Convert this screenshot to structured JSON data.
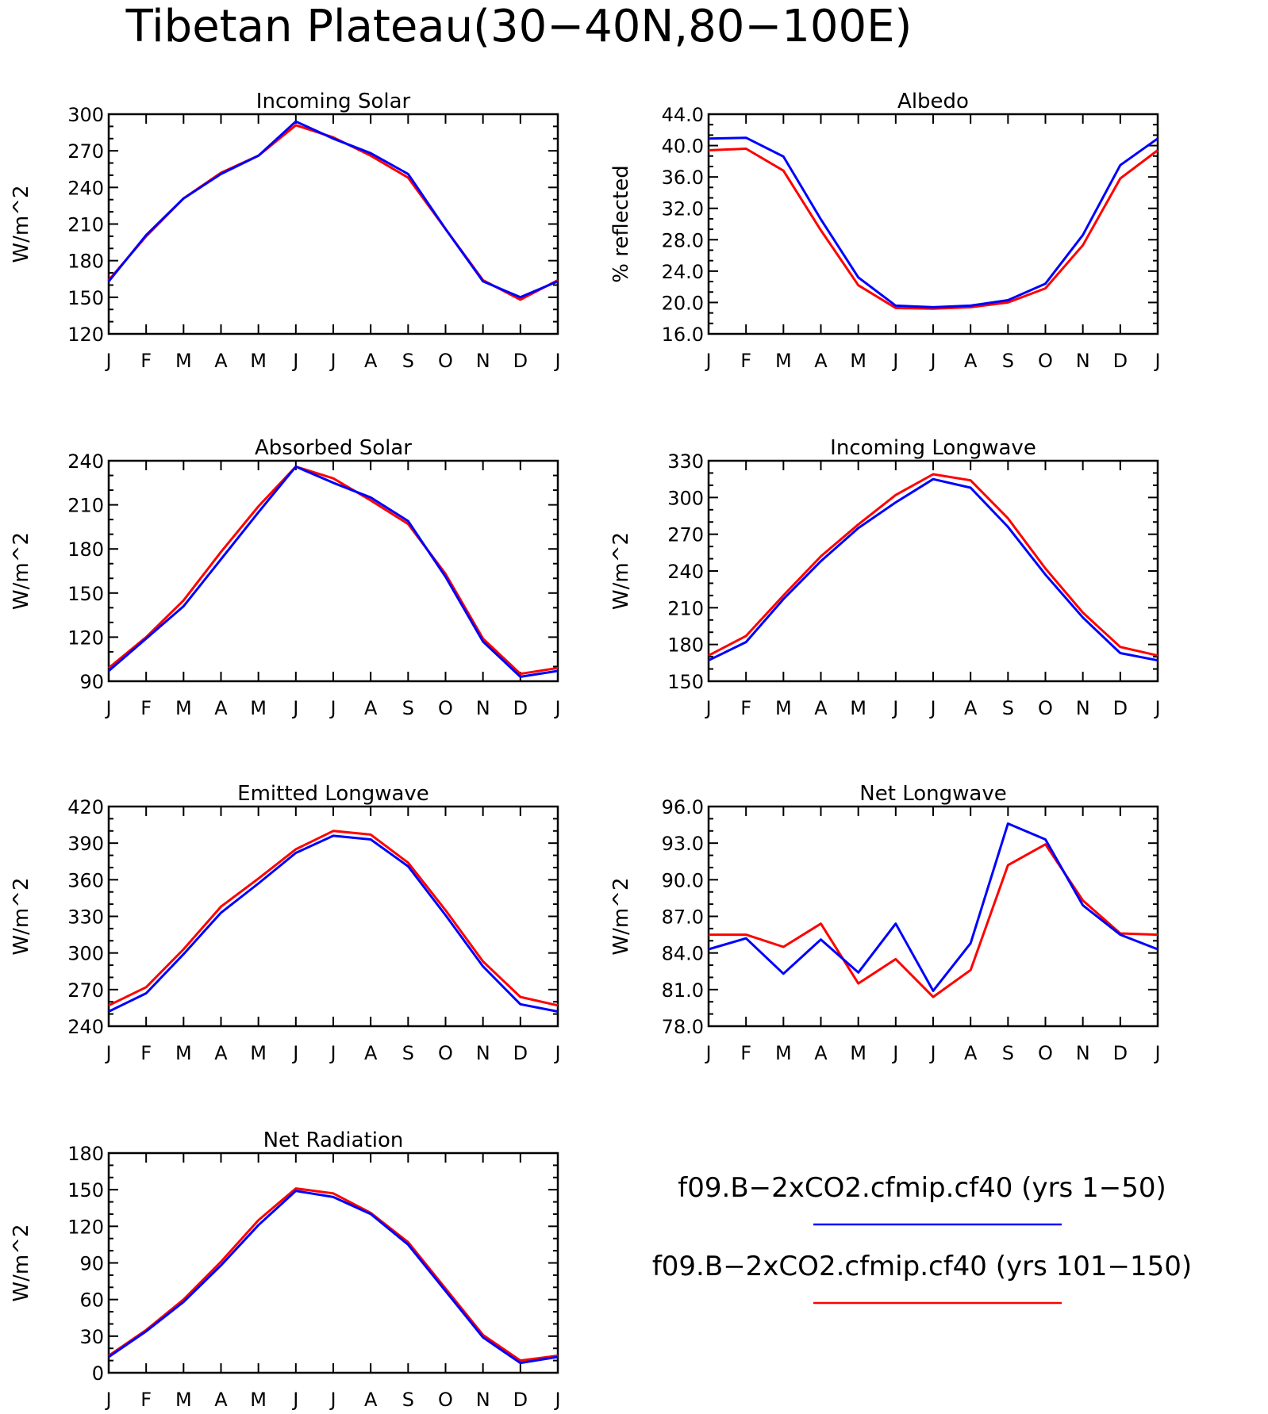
{
  "main_title": "Tibetan Plateau(30−40N,80−100E)",
  "colors": {
    "series_1": "#0000ff",
    "series_2": "#ff0000"
  },
  "legend": [
    {
      "label": "f09.B−2xCO2.cfmip.cf40 (yrs 1−50)",
      "color": "#0000ff"
    },
    {
      "label": "f09.B−2xCO2.cfmip.cf40 (yrs 101−150)",
      "color": "#ff0000"
    }
  ],
  "chart_data": [
    {
      "type": "line",
      "title": "Incoming Solar",
      "ylabel": "W/m^2",
      "ylim": [
        120,
        300
      ],
      "yticks": [
        "120",
        "150",
        "180",
        "210",
        "240",
        "270",
        "300"
      ],
      "categories": [
        "J",
        "F",
        "M",
        "A",
        "M",
        "J",
        "J",
        "A",
        "S",
        "O",
        "N",
        "D",
        "J"
      ],
      "series": [
        {
          "color": "#ff0000",
          "values": [
            164,
            200,
            231,
            252,
            266,
            291,
            281,
            266,
            248,
            206,
            164,
            148,
            164
          ]
        },
        {
          "color": "#0000ff",
          "values": [
            163,
            201,
            231,
            251,
            266,
            294,
            280,
            268,
            251,
            206,
            163,
            150,
            163
          ]
        }
      ]
    },
    {
      "type": "line",
      "title": "Albedo",
      "ylabel": "% reflected",
      "ylim": [
        16,
        44
      ],
      "yticks": [
        "16.0",
        "20.0",
        "24.0",
        "28.0",
        "32.0",
        "36.0",
        "40.0",
        "44.0"
      ],
      "categories": [
        "J",
        "F",
        "M",
        "A",
        "M",
        "J",
        "J",
        "A",
        "S",
        "O",
        "N",
        "D",
        "J"
      ],
      "series": [
        {
          "color": "#ff0000",
          "values": [
            39.4,
            39.6,
            36.8,
            29.2,
            22.2,
            19.3,
            19.2,
            19.4,
            20.0,
            21.8,
            27.3,
            35.8,
            39.4
          ]
        },
        {
          "color": "#0000ff",
          "values": [
            40.9,
            41.0,
            38.6,
            30.6,
            23.2,
            19.6,
            19.4,
            19.6,
            20.3,
            22.4,
            28.6,
            37.5,
            40.9
          ]
        }
      ]
    },
    {
      "type": "line",
      "title": "Absorbed Solar",
      "ylabel": "W/m^2",
      "ylim": [
        90,
        240
      ],
      "yticks": [
        "90",
        "120",
        "150",
        "180",
        "210",
        "240"
      ],
      "categories": [
        "J",
        "F",
        "M",
        "A",
        "M",
        "J",
        "J",
        "A",
        "S",
        "O",
        "N",
        "D",
        "J"
      ],
      "series": [
        {
          "color": "#ff0000",
          "values": [
            99,
            120,
            145,
            178,
            209,
            236,
            228,
            213,
            197,
            163,
            119,
            95,
            99
          ]
        },
        {
          "color": "#0000ff",
          "values": [
            97,
            119,
            141,
            173,
            205,
            236,
            225,
            215,
            199,
            161,
            117,
            93,
            97
          ]
        }
      ]
    },
    {
      "type": "line",
      "title": "Incoming Longwave",
      "ylabel": "W/m^2",
      "ylim": [
        150,
        330
      ],
      "yticks": [
        "150",
        "180",
        "210",
        "240",
        "270",
        "300",
        "330"
      ],
      "categories": [
        "J",
        "F",
        "M",
        "A",
        "M",
        "J",
        "J",
        "A",
        "S",
        "O",
        "N",
        "D",
        "J"
      ],
      "series": [
        {
          "color": "#ff0000",
          "values": [
            171,
            187,
            220,
            252,
            278,
            302,
            319,
            314,
            283,
            242,
            206,
            178,
            171
          ]
        },
        {
          "color": "#0000ff",
          "values": [
            167,
            182,
            217,
            248,
            275,
            296,
            315,
            308,
            276,
            237,
            202,
            173,
            167
          ]
        }
      ]
    },
    {
      "type": "line",
      "title": "Emitted Longwave",
      "ylabel": "W/m^2",
      "ylim": [
        240,
        420
      ],
      "yticks": [
        "240",
        "270",
        "300",
        "330",
        "360",
        "390",
        "420"
      ],
      "categories": [
        "J",
        "F",
        "M",
        "A",
        "M",
        "J",
        "J",
        "A",
        "S",
        "O",
        "N",
        "D",
        "J"
      ],
      "series": [
        {
          "color": "#ff0000",
          "values": [
            257,
            272,
            303,
            338,
            361,
            385,
            400,
            397,
            374,
            335,
            293,
            264,
            257
          ]
        },
        {
          "color": "#0000ff",
          "values": [
            252,
            267,
            299,
            333,
            357,
            382,
            396,
            393,
            371,
            331,
            289,
            258,
            252
          ]
        }
      ]
    },
    {
      "type": "line",
      "title": "Net Longwave",
      "ylabel": "W/m^2",
      "ylim": [
        78,
        96
      ],
      "yticks": [
        "78.0",
        "81.0",
        "84.0",
        "87.0",
        "90.0",
        "93.0",
        "96.0"
      ],
      "categories": [
        "J",
        "F",
        "M",
        "A",
        "M",
        "J",
        "J",
        "A",
        "S",
        "O",
        "N",
        "D",
        "J"
      ],
      "series": [
        {
          "color": "#ff0000",
          "values": [
            85.5,
            85.5,
            84.5,
            86.4,
            81.5,
            83.5,
            80.4,
            82.6,
            91.2,
            92.9,
            88.3,
            85.6,
            85.5
          ]
        },
        {
          "color": "#0000ff",
          "values": [
            84.3,
            85.2,
            82.3,
            85.1,
            82.4,
            86.4,
            80.9,
            84.8,
            94.6,
            93.3,
            87.9,
            85.5,
            84.3
          ]
        }
      ]
    },
    {
      "type": "line",
      "title": "Net Radiation",
      "ylabel": "W/m^2",
      "ylim": [
        0,
        180
      ],
      "yticks": [
        "0",
        "30",
        "60",
        "90",
        "120",
        "150",
        "180"
      ],
      "categories": [
        "J",
        "F",
        "M",
        "A",
        "M",
        "J",
        "J",
        "A",
        "S",
        "O",
        "N",
        "D",
        "J"
      ],
      "series": [
        {
          "color": "#ff0000",
          "values": [
            14,
            35,
            60,
            91,
            125,
            151,
            147,
            131,
            107,
            69,
            31,
            10,
            14
          ]
        },
        {
          "color": "#0000ff",
          "values": [
            13,
            34,
            58,
            88,
            121,
            149,
            144,
            130,
            105,
            67,
            29,
            8,
            13
          ]
        }
      ]
    }
  ]
}
